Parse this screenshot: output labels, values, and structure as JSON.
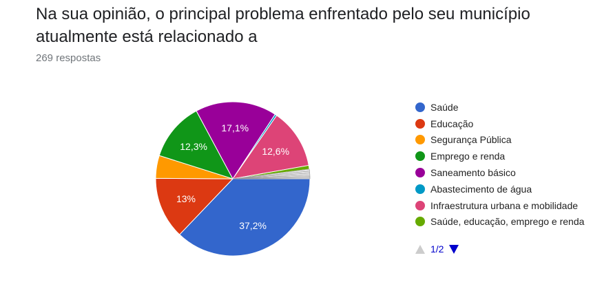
{
  "header": {
    "title": "Na sua opinião, o principal problema enfrentado pelo seu município atualmente está relacionado a",
    "responses": "269 respostas"
  },
  "pager": {
    "page": "1/2",
    "up_icon": "triangle-up-icon",
    "down_icon": "triangle-down-icon"
  },
  "colors": {
    "legend_text": "#222222",
    "pager_active": "#0000cc",
    "pager_disabled": "#cccccc"
  },
  "chart_data": {
    "type": "pie",
    "title": "",
    "series": [
      {
        "name": "Saúde",
        "value": 37.2,
        "label": "37,2%",
        "color": "#3366cc"
      },
      {
        "name": "Educação",
        "value": 13.0,
        "label": "13%",
        "color": "#dc3912"
      },
      {
        "name": "Segurança Pública",
        "value": 4.8,
        "label": "",
        "color": "#ff9900"
      },
      {
        "name": "Emprego e renda",
        "value": 12.3,
        "label": "12,3%",
        "color": "#109618"
      },
      {
        "name": "Saneamento básico",
        "value": 17.1,
        "label": "17,1%",
        "color": "#990099"
      },
      {
        "name": "Abastecimento de água",
        "value": 0.4,
        "label": "",
        "color": "#0099c6"
      },
      {
        "name": "Infraestrutura urbana e mobilidade",
        "value": 12.6,
        "label": "12,6%",
        "color": "#dd4477"
      },
      {
        "name": "Saúde, educação, emprego e renda",
        "value": 0.8,
        "label": "",
        "color": "#66aa00"
      }
    ],
    "minor_slices": [
      0.4,
      0.4,
      0.4,
      0.3,
      0.3,
      0.2
    ],
    "minor_color": "#e8e8e8",
    "legend_position": "right"
  }
}
